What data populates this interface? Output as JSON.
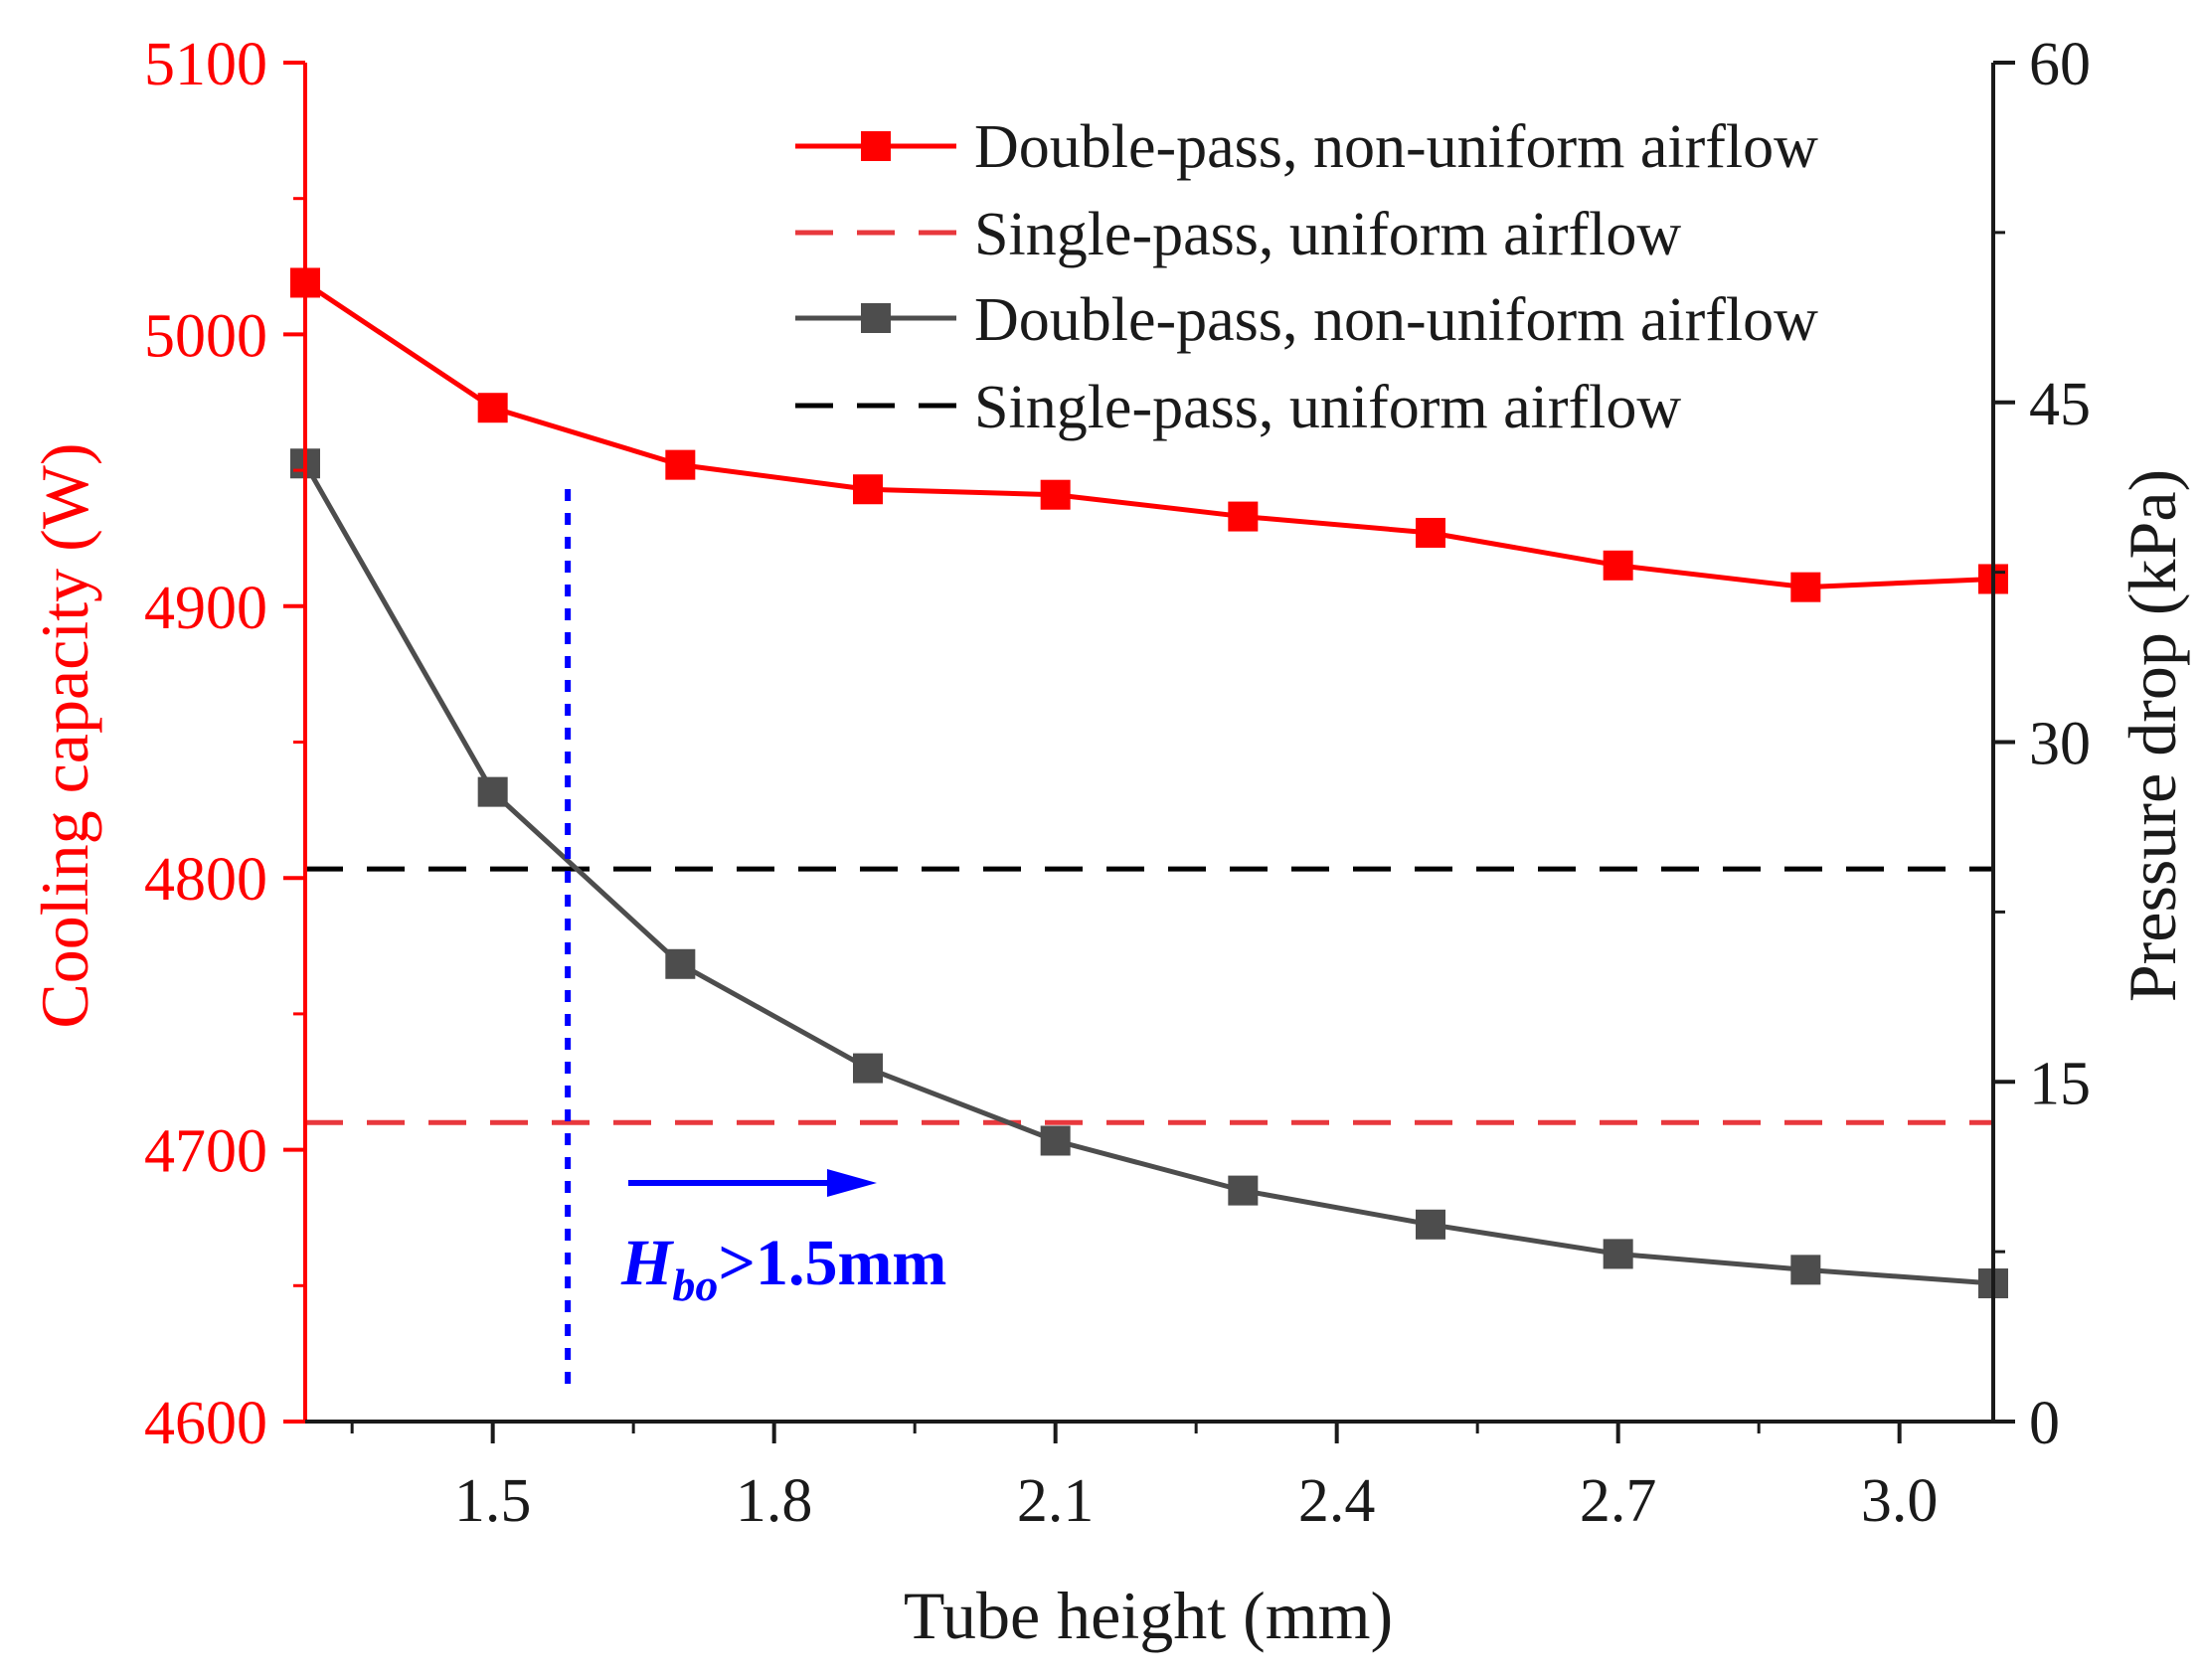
{
  "chart_data": {
    "type": "line",
    "x": [
      1.3,
      1.5,
      1.7,
      1.9,
      2.1,
      2.3,
      2.5,
      2.7,
      2.9,
      3.1
    ],
    "xlim": [
      1.3,
      3.1
    ],
    "xticks": [
      1.5,
      1.8,
      2.1,
      2.4,
      2.7,
      3.0
    ],
    "xtick_labels": [
      "1.5",
      "1.8",
      "2.1",
      "2.4",
      "2.7",
      "3.0"
    ],
    "xlabel": "Tube height (mm)",
    "y_left": {
      "label": "Cooling capacity (W)",
      "lim": [
        4600,
        5100
      ],
      "ticks": [
        4600,
        4700,
        4800,
        4900,
        5000,
        5100
      ],
      "tick_labels": [
        "4600",
        "4700",
        "4800",
        "4900",
        "5000",
        "5100"
      ],
      "color": "#ff0000"
    },
    "y_right": {
      "label": "Pressure drop (kPa)",
      "lim": [
        0,
        60
      ],
      "ticks": [
        0,
        15,
        30,
        45,
        60
      ],
      "tick_labels": [
        "0",
        "15",
        "30",
        "45",
        "60"
      ],
      "color": "#1a1a1a"
    },
    "series": [
      {
        "name": "Double-pass, non-uniform airflow",
        "axis": "left",
        "style": "solid-square",
        "color": "#ff0000",
        "values": [
          5019,
          4973,
          4952,
          4943,
          4941,
          4933,
          4927,
          4915,
          4907,
          4910
        ]
      },
      {
        "name": "Single-pass, uniform airflow",
        "axis": "left",
        "style": "dashed",
        "color": "#e8383d",
        "value": 4710
      },
      {
        "name": "Double-pass, non-uniform airflow",
        "axis": "right",
        "style": "solid-square",
        "color": "#4d4d4d",
        "values": [
          42.3,
          27.8,
          20.2,
          15.6,
          12.4,
          10.2,
          8.7,
          7.4,
          6.7,
          6.1
        ]
      },
      {
        "name": "Single-pass, uniform airflow",
        "axis": "right",
        "style": "dashed",
        "color": "#000000",
        "value": 24.4
      }
    ],
    "annotation": {
      "symbol": "H",
      "subscript": "bo",
      "text": ">1.5mm",
      "color": "#0000ff",
      "vline_x": 1.58
    },
    "legend_position": "top-right"
  }
}
